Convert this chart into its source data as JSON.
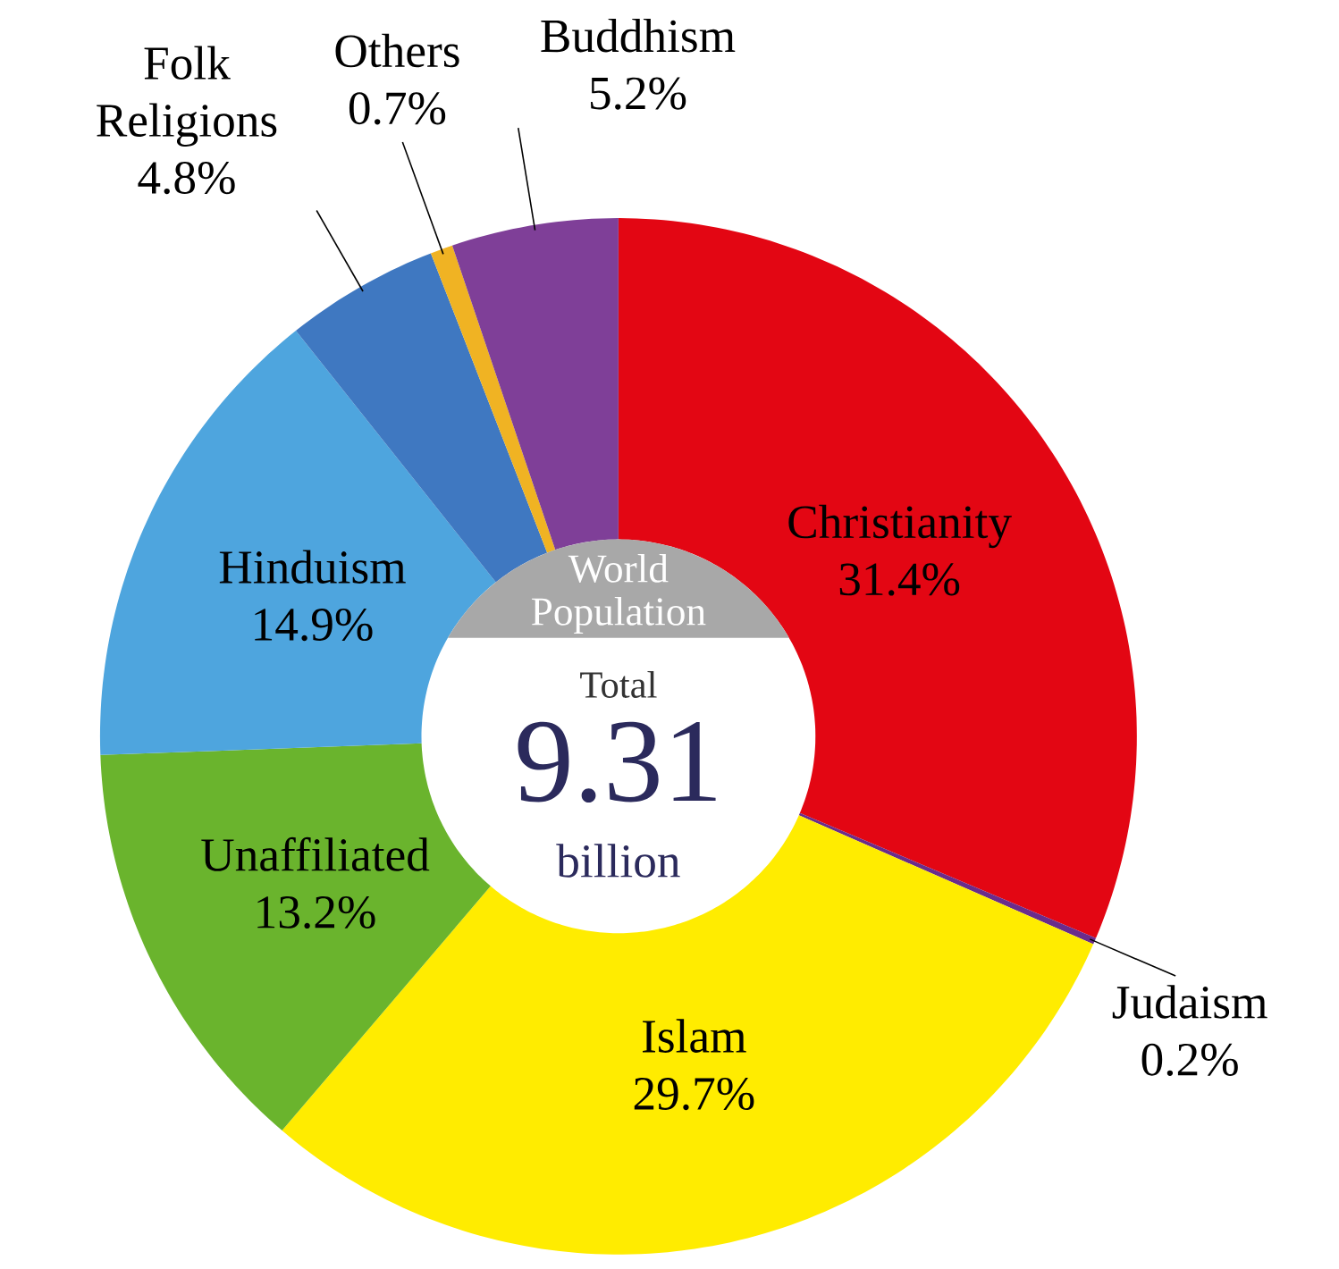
{
  "chart_data": {
    "type": "donut",
    "categories": [
      "Christianity",
      "Judaism",
      "Islam",
      "Unaffiliated",
      "Hinduism",
      "Folk Religions",
      "Others",
      "Buddhism"
    ],
    "values": [
      31.4,
      0.2,
      29.7,
      13.2,
      14.9,
      4.8,
      0.7,
      5.2
    ],
    "value_labels": [
      "31.4%",
      "0.2%",
      "29.7%",
      "13.2%",
      "14.9%",
      "4.8%",
      "0.7%",
      "5.2%"
    ],
    "colors": [
      "#e30613",
      "#6a2c8c",
      "#ffec00",
      "#6ab42d",
      "#4ea5de",
      "#3f78c1",
      "#f0b323",
      "#7f3f98"
    ],
    "annotations": [
      "World Population",
      "Total",
      "9.31",
      "billion"
    ]
  }
}
